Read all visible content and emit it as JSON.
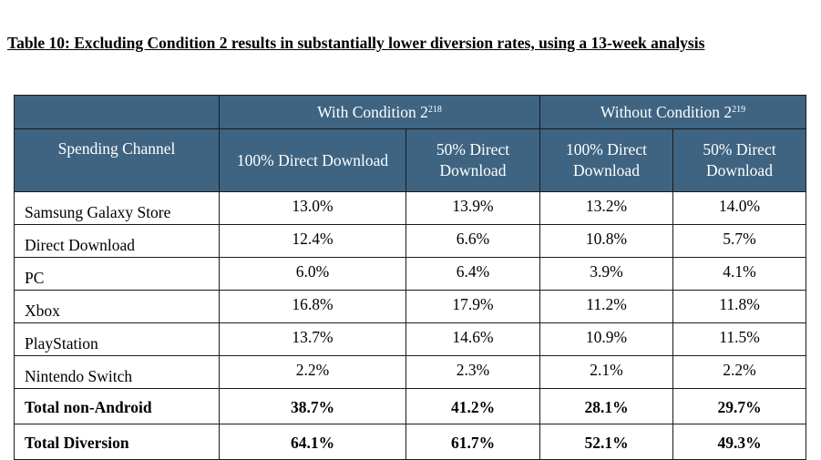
{
  "title": "Table 10: Excluding Condition 2 results in substantially lower diversion rates, using a 13-week analysis",
  "header": {
    "group_with": "With Condition 2",
    "group_with_note": "218",
    "group_without": "Without Condition 2",
    "group_without_note": "219",
    "spending_channel": "Spending Channel",
    "col_100": "100% Direct Download",
    "col_50": "50% Direct Download"
  },
  "rows": [
    {
      "label": "Samsung Galaxy Store",
      "values": [
        "13.0%",
        "13.9%",
        "13.2%",
        "14.0%"
      ]
    },
    {
      "label": "Direct Download",
      "values": [
        "12.4%",
        "6.6%",
        "10.8%",
        "5.7%"
      ]
    },
    {
      "label": "PC",
      "values": [
        "6.0%",
        "6.4%",
        "3.9%",
        "4.1%"
      ]
    },
    {
      "label": "Xbox",
      "values": [
        "16.8%",
        "17.9%",
        "11.2%",
        "11.8%"
      ]
    },
    {
      "label": "PlayStation",
      "values": [
        "13.7%",
        "14.6%",
        "10.9%",
        "11.5%"
      ]
    },
    {
      "label": "Nintendo Switch",
      "values": [
        "2.2%",
        "2.3%",
        "2.1%",
        "2.2%"
      ]
    },
    {
      "label": "Total non-Android",
      "values": [
        "38.7%",
        "41.2%",
        "28.1%",
        "29.7%"
      ]
    },
    {
      "label": "Total Diversion",
      "values": [
        "64.1%",
        "61.7%",
        "52.1%",
        "49.3%"
      ]
    }
  ]
}
